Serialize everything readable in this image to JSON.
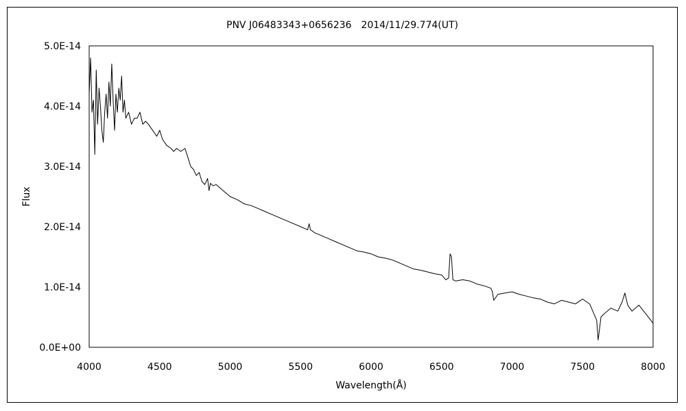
{
  "chart_data": {
    "type": "line",
    "title": "PNV J06483343+0656236　2014/11/29.774(UT)",
    "xlabel": "Wavelength(Å)",
    "ylabel": "Flux",
    "xlim": [
      4000,
      8000
    ],
    "ylim": [
      0,
      5e-14
    ],
    "grid": false,
    "legend": "none",
    "x_ticks": [
      4000,
      4500,
      5000,
      5500,
      6000,
      6500,
      7000,
      7500,
      8000
    ],
    "x_tick_labels": [
      "4000",
      "4500",
      "5000",
      "5500",
      "6000",
      "6500",
      "7000",
      "7500",
      "8000"
    ],
    "y_ticks": [
      0,
      1e-14,
      2e-14,
      3e-14,
      4e-14,
      5e-14
    ],
    "y_tick_labels": [
      "0.0E+00",
      "1.0E-14",
      "2.0E-14",
      "3.0E-14",
      "4.0E-14",
      "5.0E-14"
    ],
    "series": [
      {
        "color": "#000000",
        "x": [
          4000,
          4010,
          4020,
          4030,
          4040,
          4050,
          4060,
          4070,
          4080,
          4090,
          4100,
          4110,
          4120,
          4130,
          4140,
          4150,
          4160,
          4170,
          4180,
          4190,
          4200,
          4210,
          4220,
          4230,
          4240,
          4250,
          4260,
          4280,
          4300,
          4320,
          4340,
          4360,
          4380,
          4400,
          4420,
          4450,
          4480,
          4500,
          4520,
          4550,
          4580,
          4600,
          4620,
          4650,
          4680,
          4700,
          4720,
          4740,
          4760,
          4780,
          4800,
          4820,
          4840,
          4850,
          4860,
          4880,
          4900,
          4950,
          5000,
          5050,
          5100,
          5150,
          5200,
          5250,
          5300,
          5350,
          5400,
          5450,
          5500,
          5550,
          5560,
          5570,
          5600,
          5650,
          5700,
          5750,
          5800,
          5850,
          5900,
          5950,
          6000,
          6050,
          6100,
          6150,
          6200,
          6250,
          6300,
          6350,
          6400,
          6450,
          6500,
          6530,
          6550,
          6560,
          6570,
          6580,
          6600,
          6650,
          6700,
          6750,
          6800,
          6850,
          6860,
          6870,
          6900,
          6950,
          7000,
          7050,
          7100,
          7150,
          7200,
          7250,
          7300,
          7350,
          7400,
          7450,
          7500,
          7550,
          7600,
          7610,
          7620,
          7630,
          7650,
          7700,
          7750,
          7780,
          7800,
          7820,
          7850,
          7900,
          7950,
          8000
        ],
        "y": [
          4.2e-14,
          4.8e-14,
          3.9e-14,
          4.1e-14,
          3.2e-14,
          4.6e-14,
          3.7e-14,
          4.3e-14,
          4e-14,
          3.6e-14,
          3.4e-14,
          3.9e-14,
          4.2e-14,
          3.8e-14,
          4.4e-14,
          4e-14,
          4.7e-14,
          4.1e-14,
          3.6e-14,
          4.2e-14,
          3.9e-14,
          4.3e-14,
          4.1e-14,
          4.5e-14,
          3.9e-14,
          4.1e-14,
          3.8e-14,
          3.9e-14,
          3.7e-14,
          3.8e-14,
          3.8e-14,
          3.9e-14,
          3.7e-14,
          3.75e-14,
          3.7e-14,
          3.6e-14,
          3.5e-14,
          3.6e-14,
          3.45e-14,
          3.35e-14,
          3.3e-14,
          3.25e-14,
          3.3e-14,
          3.25e-14,
          3.3e-14,
          3.15e-14,
          3e-14,
          2.95e-14,
          2.85e-14,
          2.9e-14,
          2.75e-14,
          2.7e-14,
          2.8e-14,
          2.6e-14,
          2.72e-14,
          2.68e-14,
          2.7e-14,
          2.6e-14,
          2.5e-14,
          2.45e-14,
          2.38e-14,
          2.35e-14,
          2.3e-14,
          2.25e-14,
          2.2e-14,
          2.15e-14,
          2.1e-14,
          2.05e-14,
          2e-14,
          1.95e-14,
          2.05e-14,
          1.95e-14,
          1.9e-14,
          1.85e-14,
          1.8e-14,
          1.75e-14,
          1.7e-14,
          1.65e-14,
          1.6e-14,
          1.58e-14,
          1.55e-14,
          1.5e-14,
          1.48e-14,
          1.45e-14,
          1.4e-14,
          1.35e-14,
          1.3e-14,
          1.28e-14,
          1.25e-14,
          1.22e-14,
          1.2e-14,
          1.12e-14,
          1.15e-14,
          1.55e-14,
          1.5e-14,
          1.12e-14,
          1.1e-14,
          1.12e-14,
          1.1e-14,
          1.05e-14,
          1.02e-14,
          9.8e-15,
          9.2e-15,
          7.8e-15,
          8.8e-15,
          9e-15,
          9.2e-15,
          8.8e-15,
          8.5e-15,
          8.2e-15,
          8e-15,
          7.5e-15,
          7.2e-15,
          7.8e-15,
          7.5e-15,
          7.2e-15,
          8e-15,
          7.2e-15,
          4.5e-15,
          1.2e-15,
          3e-15,
          5e-15,
          5.5e-15,
          6.5e-15,
          6e-15,
          7.5e-15,
          9e-15,
          7e-15,
          6e-15,
          7e-15,
          5.5e-15,
          4e-15
        ]
      }
    ]
  }
}
